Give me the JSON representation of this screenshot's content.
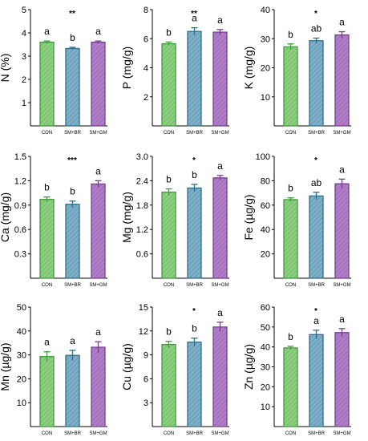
{
  "colors": {
    "CON": {
      "stroke": "#3f9a3c",
      "fill": "#8ccf7e"
    },
    "SM+BR": {
      "stroke": "#2f6e8e",
      "fill": "#7fb0c7"
    },
    "SM+GM": {
      "stroke": "#7a3d92",
      "fill": "#b07ec7"
    },
    "axis": "#000000"
  },
  "chart_data": [
    {
      "type": "bar",
      "ylabel": "N (%)",
      "ylim": [
        0,
        5
      ],
      "yticks": [
        "1",
        "2",
        "3",
        "4",
        "5"
      ],
      "tick_values": [
        1,
        2,
        3,
        4,
        5
      ],
      "significance": "**",
      "categories": [
        "CON",
        "SM+BR",
        "SM+GM"
      ],
      "values": [
        3.6,
        3.33,
        3.6
      ],
      "errors": [
        0.05,
        0.05,
        0.05
      ],
      "letters": [
        "a",
        "b",
        "a"
      ]
    },
    {
      "type": "bar",
      "ylabel": "P (mg/g)",
      "ylim": [
        0,
        8
      ],
      "yticks": [
        "2",
        "4",
        "6",
        "8"
      ],
      "tick_values": [
        2,
        4,
        6,
        8
      ],
      "significance": "**",
      "categories": [
        "CON",
        "SM+BR",
        "SM+GM"
      ],
      "values": [
        5.65,
        6.5,
        6.45
      ],
      "errors": [
        0.12,
        0.25,
        0.18
      ],
      "letters": [
        "b",
        "a",
        "a"
      ]
    },
    {
      "type": "bar",
      "ylabel": "K (mg/g)",
      "ylim": [
        0,
        40
      ],
      "yticks": [
        "10",
        "20",
        "30",
        "40"
      ],
      "tick_values": [
        10,
        20,
        30,
        40
      ],
      "significance": "*",
      "categories": [
        "CON",
        "SM+BR",
        "SM+GM"
      ],
      "values": [
        27.2,
        29.3,
        31.3
      ],
      "errors": [
        1.0,
        0.9,
        1.1
      ],
      "letters": [
        "b",
        "ab",
        "a"
      ]
    },
    {
      "type": "bar",
      "ylabel": "Ca (mg/g)",
      "ylim": [
        0,
        1.5
      ],
      "yticks": [
        "0.3",
        "0.6",
        "0.9",
        "1.2",
        "1.5"
      ],
      "tick_values": [
        0.3,
        0.6,
        0.9,
        1.2,
        1.5
      ],
      "significance": "***",
      "categories": [
        "CON",
        "SM+BR",
        "SM+GM"
      ],
      "values": [
        0.97,
        0.91,
        1.16
      ],
      "errors": [
        0.03,
        0.04,
        0.04
      ],
      "letters": [
        "b",
        "b",
        "a"
      ]
    },
    {
      "type": "bar",
      "ylabel": "Mg (mg/g)",
      "ylim": [
        0,
        3.0
      ],
      "yticks": [
        "0.6",
        "1.2",
        "1.8",
        "2.4",
        "3.0"
      ],
      "tick_values": [
        0.6,
        1.2,
        1.8,
        2.4,
        3.0
      ],
      "significance": "*",
      "categories": [
        "CON",
        "SM+BR",
        "SM+GM"
      ],
      "values": [
        2.12,
        2.22,
        2.47
      ],
      "errors": [
        0.08,
        0.09,
        0.06
      ],
      "letters": [
        "b",
        "b",
        "a"
      ]
    },
    {
      "type": "bar",
      "ylabel": "Fe (µg/g)",
      "ylim": [
        0,
        100
      ],
      "yticks": [
        "20",
        "40",
        "60",
        "80",
        "100"
      ],
      "tick_values": [
        20,
        40,
        60,
        80,
        100
      ],
      "significance": "*",
      "categories": [
        "CON",
        "SM+BR",
        "SM+GM"
      ],
      "values": [
        64.5,
        67.5,
        77.5
      ],
      "errors": [
        1.5,
        3.0,
        3.8
      ],
      "letters": [
        "b",
        "ab",
        "a"
      ]
    },
    {
      "type": "bar",
      "ylabel": "Mn (µg/g)",
      "ylim": [
        0,
        50
      ],
      "yticks": [
        "10",
        "20",
        "30",
        "40",
        "50"
      ],
      "tick_values": [
        10,
        20,
        30,
        40,
        50
      ],
      "significance": "",
      "categories": [
        "CON",
        "SM+BR",
        "SM+GM"
      ],
      "values": [
        29.3,
        29.8,
        33.2
      ],
      "errors": [
        2.0,
        2.1,
        2.3
      ],
      "letters": [
        "a",
        "a",
        "a"
      ]
    },
    {
      "type": "bar",
      "ylabel": "Cu (µg/g)",
      "ylim": [
        0,
        15
      ],
      "yticks": [
        "3",
        "6",
        "9",
        "12",
        "15"
      ],
      "tick_values": [
        3,
        6,
        9,
        12,
        15
      ],
      "significance": "*",
      "categories": [
        "CON",
        "SM+BR",
        "SM+GM"
      ],
      "values": [
        10.3,
        10.6,
        12.5
      ],
      "errors": [
        0.4,
        0.5,
        0.6
      ],
      "letters": [
        "b",
        "b",
        "a"
      ]
    },
    {
      "type": "bar",
      "ylabel": "Zn (µg/g)",
      "ylim": [
        0,
        60
      ],
      "yticks": [
        "10",
        "20",
        "30",
        "40",
        "50",
        "60"
      ],
      "tick_values": [
        10,
        20,
        30,
        40,
        50,
        60
      ],
      "significance": "*",
      "categories": [
        "CON",
        "SM+BR",
        "SM+GM"
      ],
      "values": [
        39.5,
        46.2,
        47.2
      ],
      "errors": [
        0.8,
        2.2,
        2.0
      ],
      "letters": [
        "b",
        "a",
        "a"
      ]
    }
  ]
}
